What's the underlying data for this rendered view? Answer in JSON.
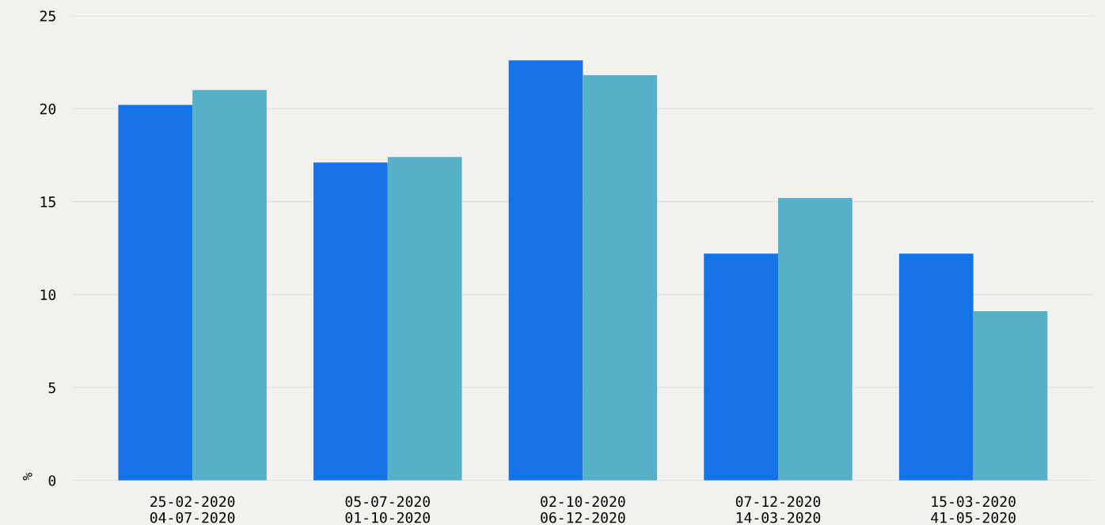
{
  "chart_data": {
    "type": "bar",
    "categories": [
      "25-02-2020\n04-07-2020",
      "05-07-2020\n01-10-2020",
      "02-10-2020\n06-12-2020",
      "07-12-2020\n14-03-2020",
      "15-03-2020\n41-05-2020"
    ],
    "series": [
      {
        "color": "#1473e6",
        "values": [
          20.2,
          17.1,
          22.6,
          12.2,
          12.2
        ]
      },
      {
        "color": "#55b1c8",
        "values": [
          21.0,
          17.4,
          21.8,
          15.2,
          9.1
        ]
      }
    ],
    "ylabel": "%",
    "ylim": [
      0,
      25
    ],
    "yticks": [
      0,
      5,
      10,
      15,
      20,
      25
    ],
    "grid": "y"
  }
}
